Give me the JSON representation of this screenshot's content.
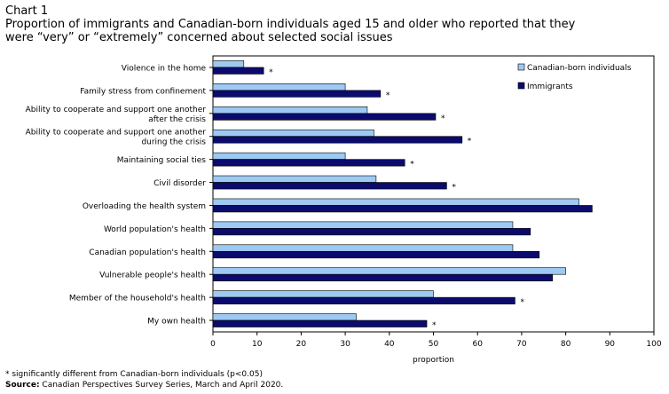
{
  "header": {
    "chart_label": "Chart 1",
    "title_line1": "Proportion of immigrants and Canadian-born individuals  aged 15 and older who reported that they",
    "title_line2": "were “very” or “extremely” concerned about selected social issues"
  },
  "footer": {
    "note": "* significantly different from Canadian-born individuals (p<0.05)",
    "source_label": "Source:",
    "source_text": " Canadian Perspectives Survey Series, March and April 2020."
  },
  "colors": {
    "canadian_born": "#9dc9f2",
    "immigrants": "#0b0b6e"
  },
  "chart_data": {
    "type": "bar",
    "orientation": "horizontal",
    "categories": [
      [
        "Violence in the home"
      ],
      [
        "Family stress from confinement"
      ],
      [
        "Ability to cooperate and support one another",
        "after the crisis"
      ],
      [
        "Ability to cooperate and support one another",
        "during the crisis"
      ],
      [
        "Maintaining social ties"
      ],
      [
        "Civil disorder"
      ],
      [
        "Overloading the health system"
      ],
      [
        "World population's health"
      ],
      [
        "Canadian population's health"
      ],
      [
        "Vulnerable people's health"
      ],
      [
        "Member of the household's health"
      ],
      [
        "My own health"
      ]
    ],
    "series": [
      {
        "name": "Canadian-born individuals",
        "values": [
          7,
          30,
          35,
          36.5,
          30,
          37,
          83,
          68,
          68,
          80,
          50,
          32.5
        ]
      },
      {
        "name": "Immigrants",
        "values": [
          11.5,
          38,
          50.5,
          56.5,
          43.5,
          53,
          86,
          72,
          74,
          77,
          68.5,
          48.5
        ]
      }
    ],
    "significant": [
      "*",
      "*",
      "*",
      "*",
      "*",
      "*",
      "",
      "",
      "",
      "",
      "*",
      "*"
    ],
    "xlabel": "proportion",
    "ylabel": "",
    "xlim": [
      0,
      100
    ],
    "xticks": [
      0,
      10,
      20,
      30,
      40,
      50,
      60,
      70,
      80,
      90,
      100
    ],
    "grid": false,
    "legend_position": "top-right"
  }
}
